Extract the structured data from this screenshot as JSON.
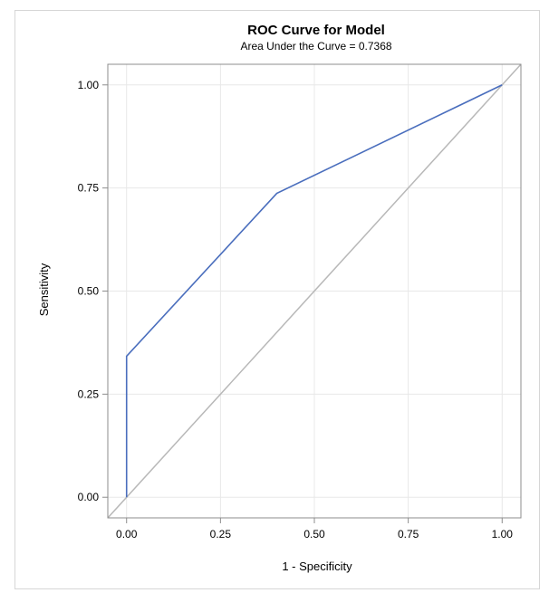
{
  "chart_data": {
    "type": "line",
    "title": "ROC Curve for Model",
    "subtitle": "Area Under the Curve = 0.7368",
    "xlabel": "1 - Specificity",
    "ylabel": "Sensitivity",
    "xlim": [
      -0.05,
      1.05
    ],
    "ylim": [
      -0.05,
      1.05
    ],
    "xticks": [
      0,
      0.25,
      0.5,
      0.75,
      1
    ],
    "xtick_labels": [
      "0.00",
      "0.25",
      "0.50",
      "0.75",
      "1.00"
    ],
    "yticks": [
      0,
      0.25,
      0.5,
      0.75,
      1
    ],
    "ytick_labels": [
      "0.00",
      "0.25",
      "0.50",
      "0.75",
      "1.00"
    ],
    "grid": true,
    "colors": {
      "roc": "#4A6EBD",
      "diagonal": "#B8B8B8",
      "grid": "#E8E8E8",
      "axis": "#8C8C8C"
    },
    "series": [
      {
        "x": [
          0,
          0,
          0.4,
          1
        ],
        "y": [
          0,
          0.342,
          0.737,
          1
        ]
      },
      {
        "x": [
          -0.05,
          1.05
        ],
        "y": [
          -0.05,
          1.05
        ]
      }
    ]
  }
}
